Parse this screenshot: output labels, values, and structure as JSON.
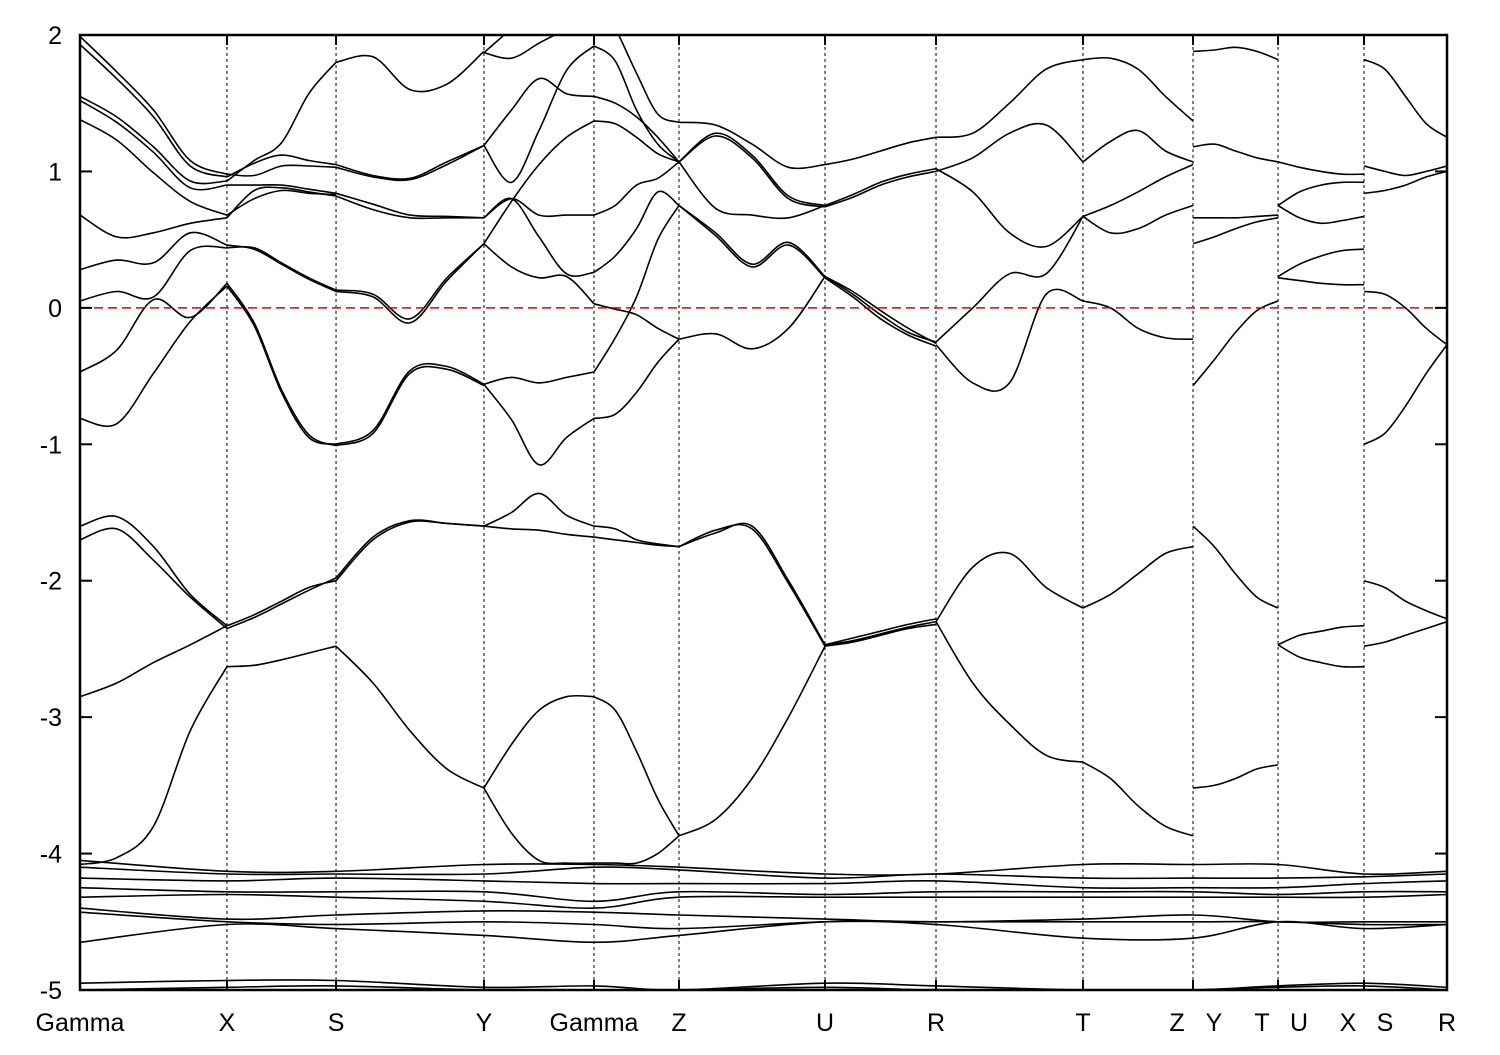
{
  "chart_data": {
    "type": "line",
    "title": "",
    "xlabel": "",
    "ylabel": "",
    "xlim": [
      0,
      1
    ],
    "ylim": [
      -5,
      2
    ],
    "yticks": [
      -5,
      -4,
      -3,
      -2,
      -1,
      0,
      1,
      2
    ],
    "ytick_labels": [
      "-5",
      "-4",
      "-3",
      "-2",
      "-1",
      "0",
      "1",
      "2"
    ],
    "fermi_level": 0,
    "fermi_color": "#e00000",
    "band_color": "#000000",
    "kpoints": [
      {
        "label": "Gamma",
        "k": 0
      },
      {
        "label": "X",
        "k": 0.1075
      },
      {
        "label": "S",
        "k": 0.1873
      },
      {
        "label": "Y",
        "k": 0.2955
      },
      {
        "label": "Gamma",
        "k": 0.376
      },
      {
        "label": "Z",
        "k": 0.4382
      },
      {
        "label": "U",
        "k": 0.545
      },
      {
        "label": "R",
        "k": 0.6262
      },
      {
        "label": "T",
        "k": 0.7337
      },
      {
        "label": "Z Y",
        "k": 0.8142
      },
      {
        "label": "T U",
        "k": 0.8764
      },
      {
        "label": "X S",
        "k": 0.9393
      },
      {
        "label": "R",
        "k": 1.0
      }
    ],
    "segments": [
      {
        "from": "Gamma",
        "to": "X",
        "k": [
          0,
          0.1075
        ],
        "bands": [
          [
            1.99,
            1.73,
            1.45,
            1.08,
            0.98
          ],
          [
            1.93,
            1.68,
            1.4,
            1.04,
            0.96
          ],
          [
            1.55,
            1.4,
            1.18,
            0.93,
            0.93
          ],
          [
            1.52,
            1.36,
            1.14,
            0.88,
            0.9
          ],
          [
            1.38,
            1.23,
            0.99,
            0.78,
            0.68
          ],
          [
            0.68,
            0.52,
            0.55,
            0.62,
            0.66
          ],
          [
            0.28,
            0.35,
            0.33,
            0.55,
            0.46
          ],
          [
            0.05,
            0.12,
            0.08,
            0.42,
            0.44
          ],
          [
            -0.47,
            -0.31,
            0.06,
            -0.07,
            0.18
          ],
          [
            -0.81,
            -0.85,
            -0.48,
            -0.1,
            0.16
          ],
          [
            -1.6,
            -1.53,
            -1.75,
            -2.1,
            -2.33
          ],
          [
            -1.7,
            -1.62,
            -1.85,
            -2.12,
            -2.35
          ],
          [
            -2.85,
            -2.75,
            -2.6,
            -2.47,
            -2.33
          ],
          [
            -4.08,
            -4.03,
            -3.8,
            -3.1,
            -2.63
          ]
        ]
      },
      {
        "from": "X",
        "to": "S",
        "k": [
          0.1075,
          0.1873
        ],
        "bands": [
          [
            0.93,
            1.08,
            1.21,
            1.57,
            1.8
          ],
          [
            0.96,
            1.06,
            1.12,
            1.08,
            1.05
          ],
          [
            0.98,
            0.97,
            1.04,
            1.04,
            1.03
          ],
          [
            0.9,
            0.9,
            0.9,
            0.87,
            0.84
          ],
          [
            0.66,
            0.86,
            0.88,
            0.85,
            0.82
          ],
          [
            0.68,
            0.8,
            0.86,
            0.84,
            0.83
          ],
          [
            0.44,
            0.44,
            0.33,
            0.22,
            0.13
          ],
          [
            0.46,
            0.43,
            0.32,
            0.21,
            0.12
          ],
          [
            0.18,
            -0.11,
            -0.6,
            -0.93,
            -1.01
          ],
          [
            0.16,
            -0.13,
            -0.62,
            -0.95,
            -1.0
          ],
          [
            -2.33,
            -2.25,
            -2.15,
            -2.05,
            -2.0
          ],
          [
            -2.35,
            -2.27,
            -2.17,
            -2.07,
            -1.98
          ],
          [
            -2.63,
            -2.62,
            -2.58,
            -2.53,
            -2.48
          ]
        ]
      },
      {
        "from": "S",
        "to": "Y",
        "k": [
          0.1873,
          0.2955
        ],
        "bands": [
          [
            1.8,
            1.84,
            1.6,
            1.64,
            1.88
          ],
          [
            1.05,
            0.97,
            0.95,
            1.07,
            1.19
          ],
          [
            1.03,
            0.96,
            0.94,
            1.05,
            1.19
          ],
          [
            0.84,
            0.76,
            0.68,
            0.67,
            0.66
          ],
          [
            0.82,
            0.72,
            0.66,
            0.66,
            0.66
          ],
          [
            0.13,
            0.1,
            -0.08,
            0.22,
            0.47
          ],
          [
            0.12,
            0.08,
            -0.11,
            0.2,
            0.47
          ],
          [
            -1.0,
            -0.9,
            -0.46,
            -0.43,
            -0.56
          ],
          [
            -1.01,
            -0.92,
            -0.48,
            -0.45,
            -0.57
          ],
          [
            -2.0,
            -1.7,
            -1.57,
            -1.58,
            -1.6
          ],
          [
            -1.98,
            -1.68,
            -1.56,
            -1.58,
            -1.6
          ],
          [
            -2.48,
            -2.75,
            -3.1,
            -3.38,
            -3.52
          ]
        ]
      },
      {
        "from": "Y",
        "to": "Gamma",
        "k": [
          0.2955,
          0.376
        ],
        "bands": [
          [
            1.87,
            2.05,
            2.25,
            2.4,
            2.5
          ],
          [
            1.87,
            1.83,
            1.94,
            2.05,
            2.2
          ],
          [
            1.19,
            1.45,
            1.68,
            1.57,
            1.55
          ],
          [
            1.19,
            0.92,
            1.3,
            1.74,
            1.92
          ],
          [
            0.47,
            0.78,
            1.05,
            1.25,
            1.37
          ],
          [
            0.66,
            0.8,
            0.68,
            0.68,
            0.68
          ],
          [
            0.66,
            0.8,
            0.52,
            0.25,
            0.26
          ],
          [
            0.47,
            0.3,
            0.22,
            0.23,
            0.03
          ],
          [
            -0.56,
            -0.51,
            -0.55,
            -0.51,
            -0.47
          ],
          [
            -0.56,
            -0.82,
            -1.15,
            -0.95,
            -0.81
          ],
          [
            -1.6,
            -1.5,
            -1.36,
            -1.52,
            -1.6
          ],
          [
            -1.6,
            -1.62,
            -1.63,
            -1.66,
            -1.68
          ],
          [
            -3.52,
            -3.2,
            -2.95,
            -2.85,
            -2.85
          ],
          [
            -3.52,
            -3.85,
            -4.05,
            -4.07,
            -4.07
          ]
        ]
      },
      {
        "from": "Gamma",
        "to": "Z",
        "k": [
          0.376,
          0.4382
        ],
        "bands": [
          [
            2.3,
            2.05,
            1.72,
            1.42,
            1.36
          ],
          [
            1.92,
            1.81,
            1.45,
            1.2,
            1.07
          ],
          [
            1.55,
            1.5,
            1.4,
            1.25,
            1.07
          ],
          [
            1.37,
            1.35,
            1.25,
            1.13,
            1.07
          ],
          [
            0.68,
            0.75,
            0.9,
            0.95,
            1.07
          ],
          [
            0.26,
            0.38,
            0.58,
            0.85,
            0.75
          ],
          [
            0.03,
            -0.01,
            -0.05,
            -0.15,
            -0.23
          ],
          [
            -0.47,
            -0.22,
            0.08,
            0.5,
            0.75
          ],
          [
            -0.81,
            -0.78,
            -0.62,
            -0.4,
            -0.23
          ],
          [
            -1.6,
            -1.62,
            -1.7,
            -1.73,
            -1.75
          ],
          [
            -1.68,
            -1.7,
            -1.72,
            -1.74,
            -1.75
          ],
          [
            -2.85,
            -2.95,
            -3.25,
            -3.6,
            -3.87
          ],
          [
            -4.07,
            -4.07,
            -4.07,
            -4.0,
            -3.87
          ]
        ]
      },
      {
        "from": "Z",
        "to": "U",
        "k": [
          0.4382,
          0.545
        ],
        "bands": [
          [
            1.36,
            1.34,
            1.2,
            1.03,
            1.05
          ],
          [
            1.07,
            1.28,
            1.12,
            0.82,
            0.75
          ],
          [
            1.07,
            1.26,
            1.1,
            0.8,
            0.74
          ],
          [
            1.07,
            0.73,
            0.68,
            0.66,
            0.75
          ],
          [
            0.75,
            0.55,
            0.32,
            0.48,
            0.23
          ],
          [
            0.75,
            0.53,
            0.3,
            0.46,
            0.22
          ],
          [
            -0.23,
            -0.19,
            -0.3,
            -0.15,
            0.23
          ],
          [
            -1.75,
            -1.65,
            -1.6,
            -2.0,
            -2.47
          ],
          [
            -1.75,
            -1.63,
            -1.62,
            -2.02,
            -2.48
          ],
          [
            -3.87,
            -3.75,
            -3.45,
            -3.0,
            -2.48
          ]
        ]
      },
      {
        "from": "U",
        "to": "R",
        "k": [
          0.545,
          0.6262
        ],
        "bands": [
          [
            1.05,
            1.09,
            1.15,
            1.21,
            1.25
          ],
          [
            0.75,
            0.83,
            0.92,
            0.98,
            1.02
          ],
          [
            0.74,
            0.81,
            0.9,
            0.96,
            1.0
          ],
          [
            0.23,
            0.1,
            -0.05,
            -0.18,
            -0.25
          ],
          [
            0.22,
            0.08,
            -0.08,
            -0.2,
            -0.28
          ],
          [
            0.23,
            0.12,
            -0.02,
            -0.15,
            -0.26
          ],
          [
            -2.47,
            -2.42,
            -2.37,
            -2.32,
            -2.28
          ],
          [
            -2.48,
            -2.45,
            -2.4,
            -2.35,
            -2.32
          ],
          [
            -2.47,
            -2.44,
            -2.39,
            -2.34,
            -2.3
          ]
        ]
      },
      {
        "from": "R",
        "to": "T",
        "k": [
          0.6262,
          0.7337
        ],
        "bands": [
          [
            1.25,
            1.28,
            1.5,
            1.75,
            1.82
          ],
          [
            1.02,
            0.85,
            0.55,
            0.45,
            0.67
          ],
          [
            1.0,
            1.1,
            1.28,
            1.34,
            1.07
          ],
          [
            -0.25,
            0.0,
            0.25,
            0.25,
            0.67
          ],
          [
            -0.27,
            -0.55,
            -0.55,
            0.1,
            0.05
          ],
          [
            -2.3,
            -1.9,
            -1.8,
            -2.05,
            -2.2
          ],
          [
            -2.3,
            -2.75,
            -3.05,
            -3.28,
            -3.33
          ]
        ]
      },
      {
        "from": "T",
        "to": "Z",
        "k": [
          0.7337,
          0.8142
        ],
        "bands": [
          [
            1.82,
            1.83,
            1.75,
            1.55,
            1.37
          ],
          [
            1.07,
            1.22,
            1.3,
            1.15,
            1.07
          ],
          [
            0.67,
            0.55,
            0.58,
            0.68,
            0.75
          ],
          [
            0.67,
            0.75,
            0.85,
            0.96,
            1.05
          ],
          [
            0.05,
            0.0,
            -0.15,
            -0.22,
            -0.23
          ],
          [
            -2.2,
            -2.1,
            -1.95,
            -1.8,
            -1.75
          ],
          [
            -3.33,
            -3.45,
            -3.65,
            -3.8,
            -3.87
          ]
        ]
      },
      {
        "from": "Y",
        "to": "T",
        "k": [
          0.8142,
          0.8764
        ],
        "bands": [
          [
            1.88,
            1.89,
            1.91,
            1.88,
            1.82
          ],
          [
            1.18,
            1.2,
            1.15,
            1.1,
            1.07
          ],
          [
            0.66,
            0.66,
            0.66,
            0.67,
            0.68
          ],
          [
            0.47,
            0.52,
            0.58,
            0.63,
            0.66
          ],
          [
            -0.57,
            -0.38,
            -0.18,
            -0.02,
            0.05
          ],
          [
            -1.6,
            -1.75,
            -1.95,
            -2.12,
            -2.2
          ],
          [
            -3.52,
            -3.5,
            -3.45,
            -3.38,
            -3.35
          ]
        ]
      },
      {
        "from": "U",
        "to": "X",
        "k": [
          0.8764,
          0.9393
        ],
        "bands": [
          [
            1.07,
            1.03,
            1.0,
            0.98,
            0.98
          ],
          [
            0.75,
            0.85,
            0.9,
            0.92,
            0.92
          ],
          [
            0.75,
            0.66,
            0.62,
            0.64,
            0.67
          ],
          [
            0.23,
            0.32,
            0.38,
            0.42,
            0.43
          ],
          [
            0.22,
            0.2,
            0.18,
            0.17,
            0.17
          ],
          [
            -2.47,
            -2.4,
            -2.37,
            -2.34,
            -2.33
          ],
          [
            -2.47,
            -2.56,
            -2.6,
            -2.63,
            -2.63
          ]
        ]
      },
      {
        "from": "S",
        "to": "R",
        "k": [
          0.9393,
          1.0
        ],
        "bands": [
          [
            1.82,
            1.75,
            1.55,
            1.35,
            1.25
          ],
          [
            1.04,
            1.0,
            0.97,
            1.0,
            1.04
          ],
          [
            0.84,
            0.86,
            0.9,
            0.96,
            1.0
          ],
          [
            0.12,
            0.1,
            0.0,
            -0.15,
            -0.27
          ],
          [
            -1.0,
            -0.92,
            -0.72,
            -0.48,
            -0.27
          ],
          [
            -2.0,
            -2.05,
            -2.15,
            -2.22,
            -2.28
          ],
          [
            -2.48,
            -2.45,
            -2.4,
            -2.35,
            -2.3
          ]
        ]
      }
    ],
    "semicore_bands": [
      [
        -4.05,
        -4.13,
        -4.13,
        -4.08,
        -4.08,
        -4.1,
        -4.15,
        -4.15,
        -4.08,
        -4.08,
        -4.08,
        -4.15,
        -4.13
      ],
      [
        -4.1,
        -4.15,
        -4.15,
        -4.15,
        -4.1,
        -4.12,
        -4.18,
        -4.15,
        -4.18,
        -4.18,
        -4.18,
        -4.17,
        -4.15
      ],
      [
        -4.18,
        -4.2,
        -4.18,
        -4.2,
        -4.22,
        -4.22,
        -4.22,
        -4.2,
        -4.25,
        -4.25,
        -4.25,
        -4.22,
        -4.2
      ],
      [
        -4.25,
        -4.28,
        -4.28,
        -4.28,
        -4.35,
        -4.28,
        -4.3,
        -4.28,
        -4.28,
        -4.28,
        -4.3,
        -4.28,
        -4.28
      ],
      [
        -4.32,
        -4.3,
        -4.32,
        -4.35,
        -4.4,
        -4.32,
        -4.32,
        -4.32,
        -4.32,
        -4.32,
        -4.32,
        -4.32,
        -4.3
      ],
      [
        -4.4,
        -4.48,
        -4.45,
        -4.42,
        -4.43,
        -4.45,
        -4.48,
        -4.5,
        -4.48,
        -4.45,
        -4.5,
        -4.5,
        -4.5
      ],
      [
        -4.43,
        -4.5,
        -4.52,
        -4.5,
        -4.52,
        -4.55,
        -4.5,
        -4.5,
        -4.5,
        -4.5,
        -4.5,
        -4.52,
        -4.52
      ],
      [
        -4.65,
        -4.52,
        -4.55,
        -4.6,
        -4.65,
        -4.6,
        -4.5,
        -4.52,
        -4.62,
        -4.62,
        -4.5,
        -4.55,
        -4.52
      ],
      [
        -4.95,
        -4.93,
        -4.93,
        -4.98,
        -4.97,
        -5.0,
        -4.95,
        -4.97,
        -5.0,
        -5.0,
        -4.97,
        -4.95,
        -4.98
      ],
      [
        -5.0,
        -4.98,
        -4.97,
        -5.0,
        -5.0,
        -5.0,
        -4.98,
        -5.0,
        -5.0,
        -5.0,
        -4.98,
        -4.97,
        -5.0
      ]
    ]
  }
}
